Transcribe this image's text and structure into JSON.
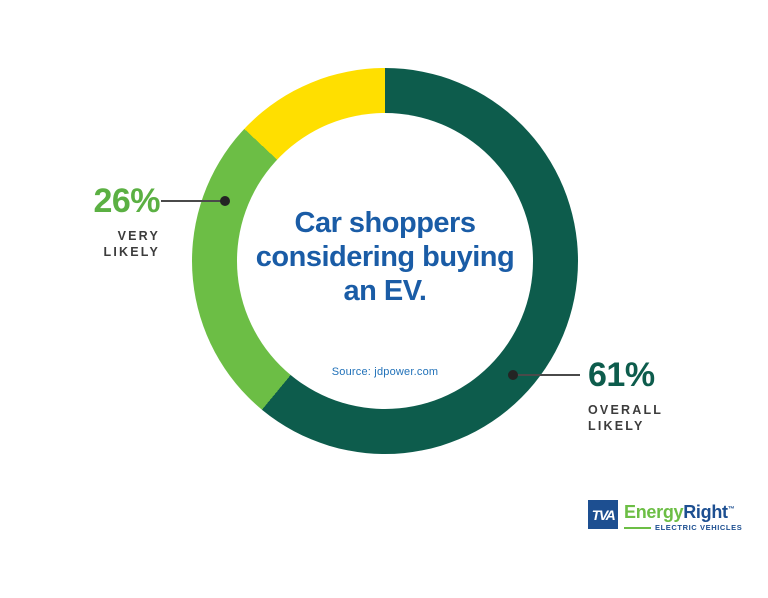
{
  "background": "#ffffff",
  "chart_data": {
    "type": "pie",
    "subtype": "donut",
    "title": "Car shoppers considering buying an EV.",
    "source": "Source: jdpower.com",
    "start_angle_deg": 0,
    "direction": "clockwise",
    "segments": [
      {
        "label": "OVERALL LIKELY",
        "value": 61,
        "color": "#0D5C4C",
        "labeled": true
      },
      {
        "label": "VERY LIKELY",
        "value": 26,
        "color": "#6CBE45",
        "labeled": true
      },
      {
        "label": "",
        "value": 13,
        "color": "#FFDF00",
        "labeled": false
      }
    ],
    "legend_position": "callout-labels",
    "center_hole": true
  },
  "center": {
    "title_lines": [
      "Car shoppers",
      "considering buying",
      "an EV."
    ],
    "source_text": "Source: jdpower.com"
  },
  "callouts": {
    "left": {
      "percent": "26%",
      "word1": "VERY",
      "word2": "LIKELY"
    },
    "right": {
      "percent": "61%",
      "word1": "OVERALL",
      "word2": "LIKELY"
    }
  },
  "logo": {
    "tva": "TVA",
    "brand_energy": "Energy",
    "brand_right": "Right",
    "trademark": "™",
    "subtitle": "ELECTRIC VEHICLES"
  },
  "colors": {
    "dark_green": "#0D5C4C",
    "light_green": "#6CBE45",
    "yellow": "#FFDF00",
    "title_blue": "#1A5CA6",
    "source_blue": "#2272B9",
    "label_gray": "#3C3C3C",
    "line_gray": "#4A4A4A",
    "logo_blue": "#1D4F91",
    "left_pct": "#5BB043"
  }
}
